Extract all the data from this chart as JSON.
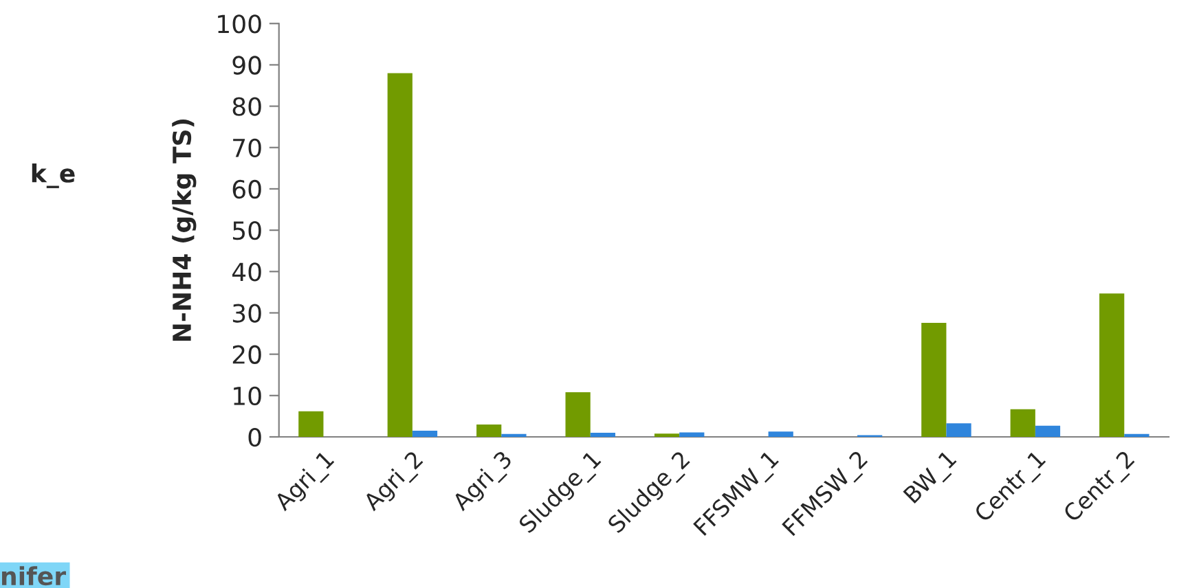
{
  "chart_data": {
    "type": "bar",
    "ylabel": "N-NH4 (g/kg TS)",
    "categories": [
      "Agri_1",
      "Agri_2",
      "Agri_3",
      "Sludge_1",
      "Sludge_2",
      "FFSMW_1",
      "FFMSW_2",
      "BW_1",
      "Centr_1",
      "Centr_2"
    ],
    "series": [
      {
        "color": "#729b00",
        "values": [
          6.2,
          88,
          3,
          10.8,
          0.8,
          null,
          null,
          27.6,
          6.7,
          34.7
        ]
      },
      {
        "color": "#2f85dc",
        "values": [
          null,
          1.5,
          0.7,
          1.0,
          1.1,
          1.3,
          0.4,
          3.3,
          2.7,
          0.7
        ]
      }
    ],
    "ylim": [
      0,
      100
    ],
    "yticks": [
      0,
      10,
      20,
      30,
      40,
      50,
      60,
      70,
      80,
      90,
      100
    ],
    "grid": false,
    "legend": false,
    "annotations": [
      "k_e",
      "nifer"
    ]
  }
}
